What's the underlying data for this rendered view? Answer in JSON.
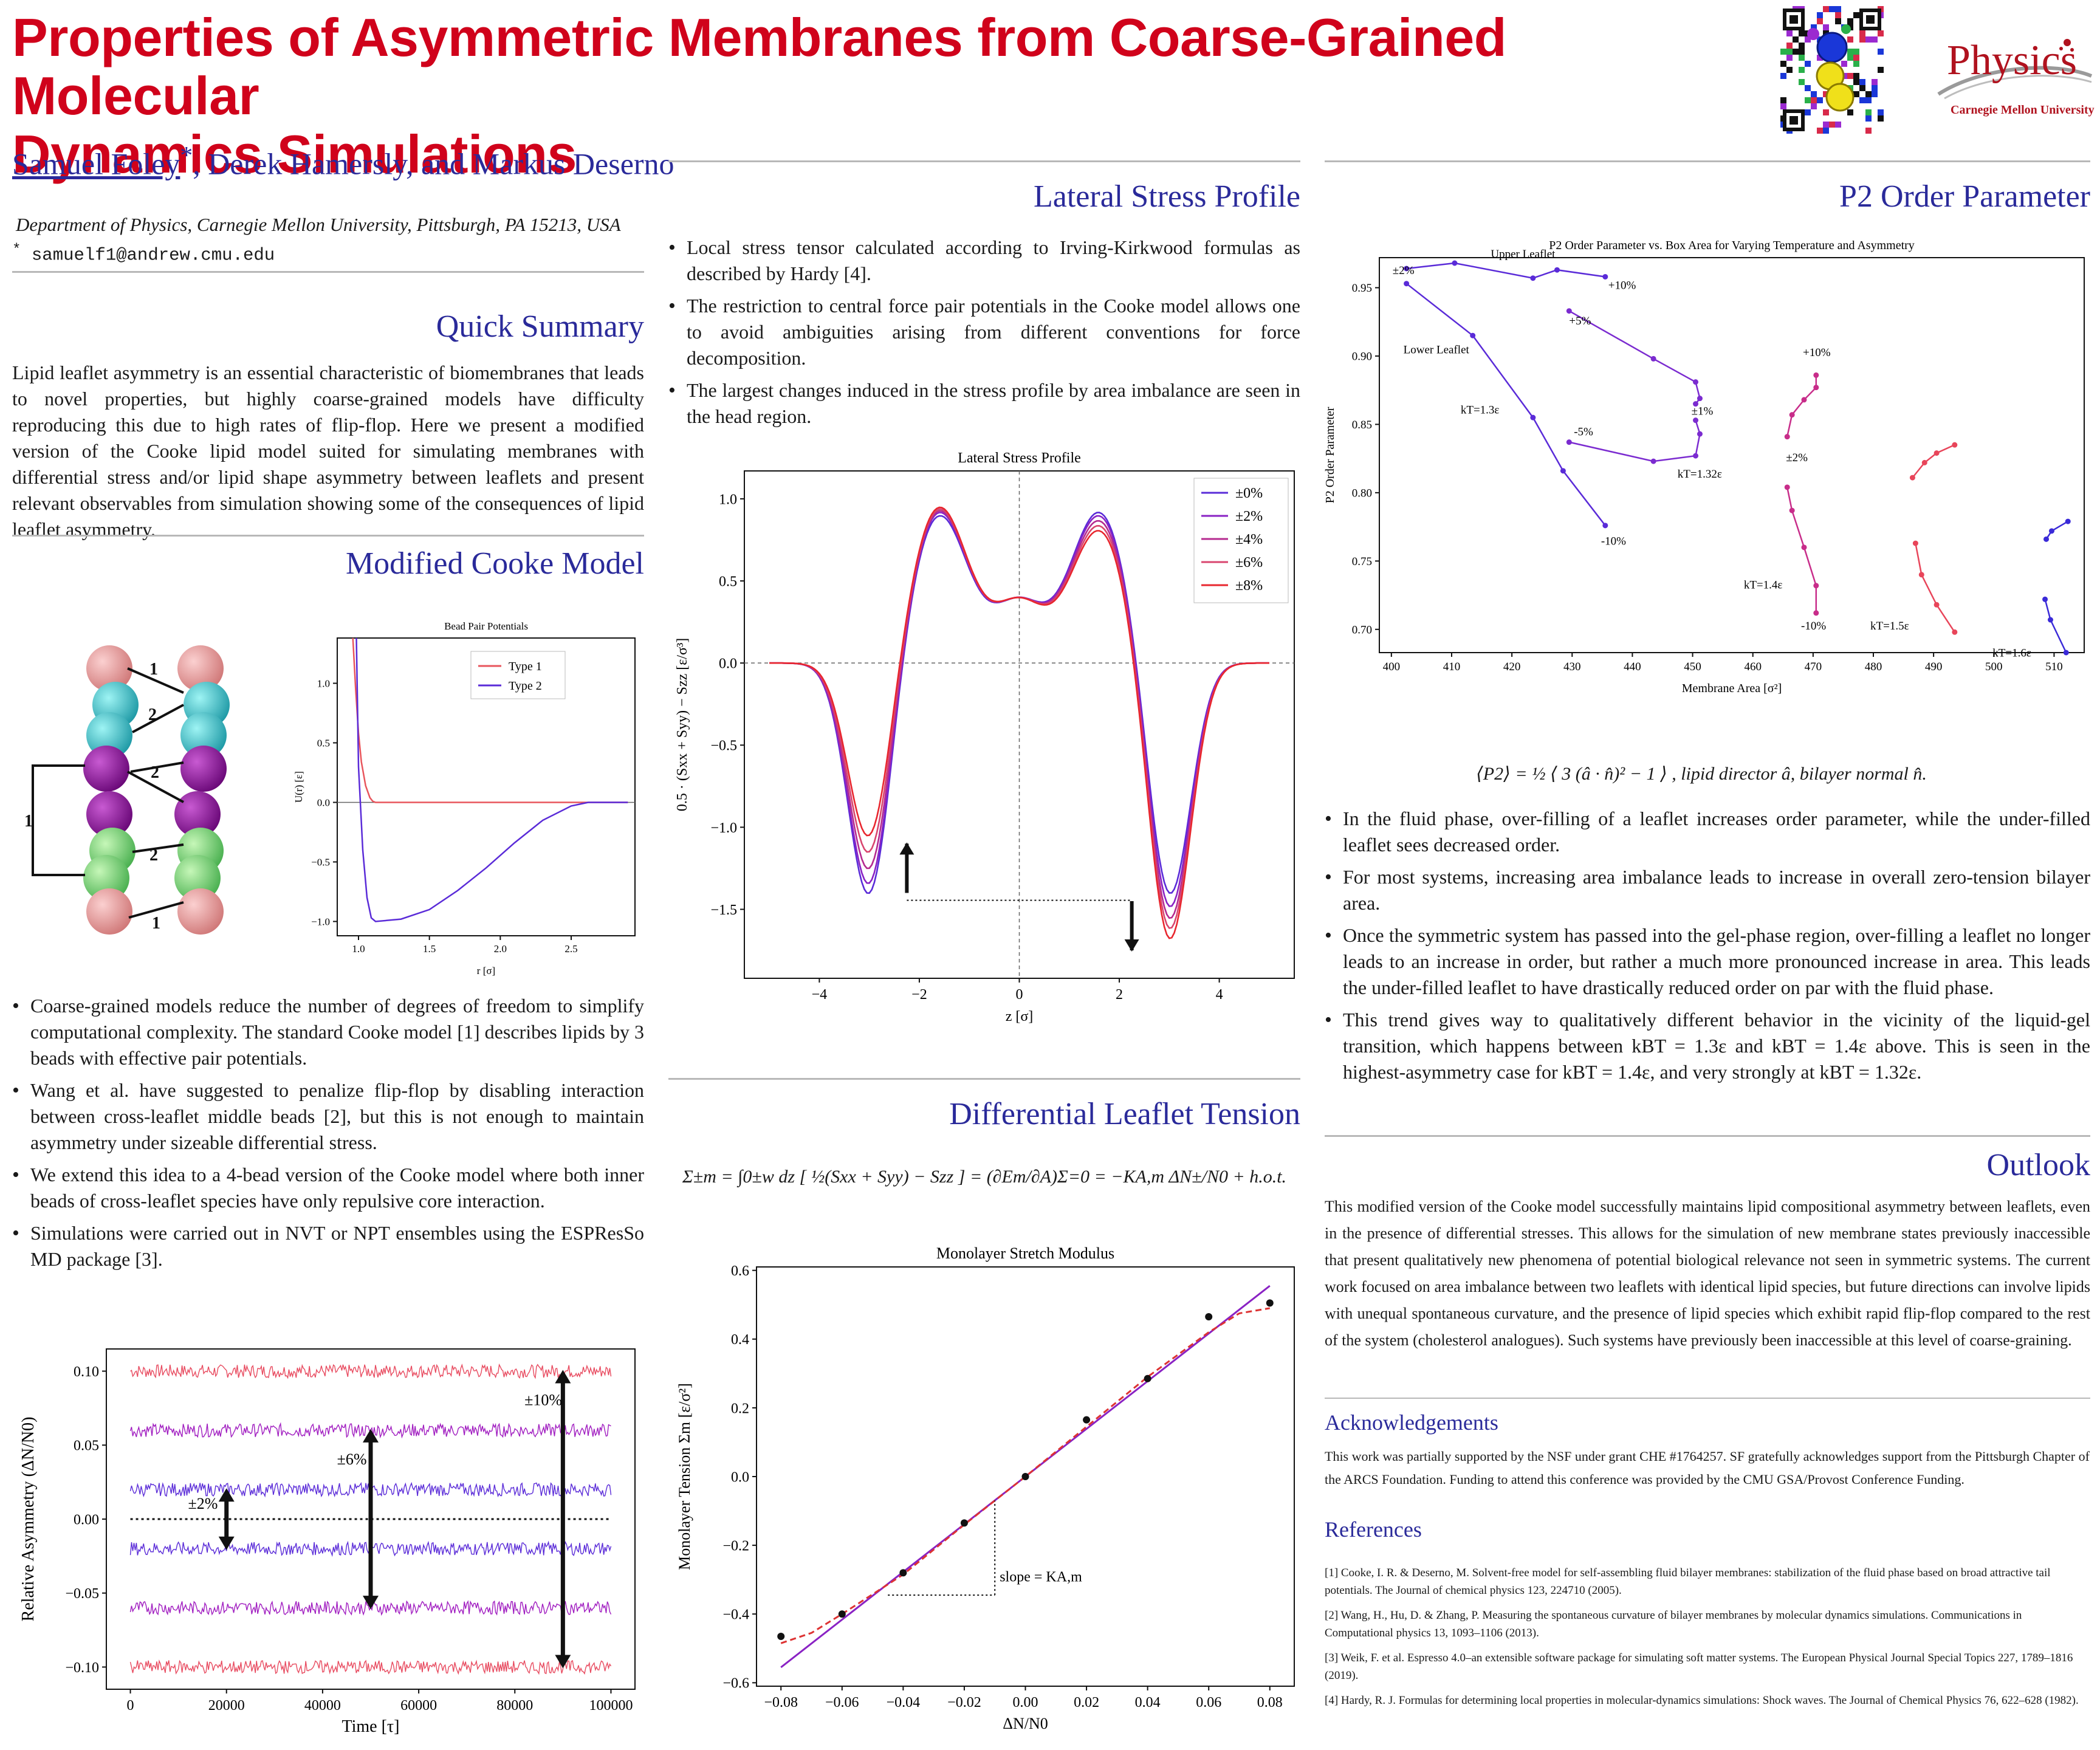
{
  "header": {
    "title_line1": "Properties of Asymmetric Membranes from Coarse-Grained Molecular",
    "title_line2": "Dynamics Simulations",
    "author_first": "Samuel Foley",
    "author_star": "*",
    "authors_rest": ", Derek Hamersly, and Markus Deserno",
    "affiliation": "Department of Physics, Carnegie Mellon University, Pittsburgh, PA 15213, USA",
    "email_star": "*",
    "email": "samuelf1@andrew.cmu.edu",
    "logo_word": "Physics",
    "logo_sub": "Carnegie Mellon University"
  },
  "quick_summary": {
    "title": "Quick Summary",
    "text": "Lipid leaflet asymmetry is an essential characteristic of biomembranes that leads to novel properties, but highly coarse-grained models have difficulty reproducing this due to high rates of flip-flop. Here we present a modified version of the Cooke lipid model suited for simulating membranes with differential stress and/or lipid shape asymmetry between leaflets and present relevant observables from simulation showing some of the consequences of lipid leaflet asymmetry."
  },
  "cooke": {
    "title": "Modified Cooke Model",
    "bead_labels": [
      "1",
      "2",
      "2",
      "1",
      "2",
      "1"
    ],
    "bullets": [
      "Coarse-grained models reduce the number of degrees of freedom to simplify computational complexity. The standard Cooke model [1] describes lipids by 3 beads with effective pair potentials.",
      "Wang et al. have suggested to penalize flip-flop by disabling interaction between cross-leaflet middle beads [2], but this is not enough to maintain asymmetry under sizeable differential stress.",
      "We extend this idea to a 4-bead version of the Cooke model where both inner beads of cross-leaflet species have only repulsive core interaction.",
      "Simulations were carried out in NVT or NPT ensembles using the ESPResSo MD package [3]."
    ]
  },
  "lateral": {
    "title": "Lateral Stress Profile",
    "bullets": [
      "Local stress tensor calculated according to Irving-Kirkwood formulas as described by Hardy [4].",
      "The restriction to central force pair potentials in the Cooke model allows one to avoid ambiguities arising from different conventions for force decomposition.",
      "The largest changes induced in the stress profile by area imbalance are seen in the head region."
    ]
  },
  "tension": {
    "title": "Differential Leaflet Tension",
    "equation": "Σ±m = ∫0±w dz [ ½(Sxx + Syy) − Szz ] = (∂Em/∂A)Σ=0 = −KA,m ΔN±/N0 + h.o.t."
  },
  "p2": {
    "title": "P2 Order Parameter",
    "equation": "⟨P2⟩ = ½ ⟨ 3 (â · n̂)² − 1 ⟩ ,     lipid director â, bilayer normal n̂.",
    "bullets": [
      "In the fluid phase, over-filling of a leaflet increases order parameter, while the under-filled leaflet sees decreased order.",
      "For most systems, increasing area imbalance leads to increase in overall zero-tension bilayer area.",
      "Once the symmetric system has passed into the gel-phase region, over-filling a leaflet no longer leads to an increase in order, but rather a much more pronounced increase in area. This leads the under-filled leaflet to have drastically reduced order on par with the fluid phase.",
      "This trend gives way to qualitatively different behavior in the vicinity of the liquid-gel transition, which happens between kBT = 1.3ε and kBT = 1.4ε above. This is seen in the highest-asymmetry case for kBT = 1.4ε, and very strongly at kBT = 1.32ε."
    ]
  },
  "outlook": {
    "title": "Outlook",
    "text": "This modified version of the Cooke model successfully maintains lipid compositional asymmetry between leaflets, even in the presence of differential stresses. This allows for the simulation of new membrane states previously inaccessible that present qualitatively new phenomena of potential biological relevance not seen in symmetric systems. The current work focused on area imbalance between two leaflets with identical lipid species, but future directions can involve lipids with unequal spontaneous curvature, and the presence of lipid species which exhibit rapid flip-flop compared to the rest of the system (cholesterol analogues). Such systems have previously been inaccessible at this level of coarse-graining."
  },
  "ack": {
    "title": "Acknowledgements",
    "text": "This work was partially supported by the NSF under grant CHE #1764257. SF gratefully acknowledges support from the Pittsburgh Chapter of the ARCS Foundation. Funding to attend this conference was provided by the CMU GSA/Provost Conference Funding."
  },
  "refs": {
    "title": "References",
    "items": [
      "[1] Cooke, I. R. & Deserno, M. Solvent-free model for self-assembling fluid bilayer membranes: stabilization of the fluid phase based on broad attractive tail potentials. The Journal of chemical physics 123, 224710 (2005).",
      "[2] Wang, H., Hu, D. & Zhang, P. Measuring the spontaneous curvature of bilayer membranes by molecular dynamics simulations. Communications in Computational physics 13, 1093–1106 (2013).",
      "[3] Weik, F. et al. Espresso 4.0–an extensible software package for simulating soft matter systems. The European Physical Journal Special Topics 227, 1789–1816 (2019).",
      "[4] Hardy, R. J. Formulas for determining local properties in molecular-dynamics simulations: Shock waves. The Journal of Chemical Physics 76, 622–628 (1982)."
    ]
  },
  "chart_data": [
    {
      "id": "bead",
      "type": "line",
      "title": "Bead Pair Potentials",
      "xlabel": "r [σ]",
      "ylabel": "U(r) [ε]",
      "xlim": [
        0.85,
        2.95
      ],
      "ylim": [
        -1.12,
        1.38
      ],
      "xticks": [
        1.0,
        1.5,
        2.0,
        2.5
      ],
      "yticks": [
        -1.0,
        -0.5,
        0.0,
        0.5,
        1.0
      ],
      "xtick_labels": [
        "1.0",
        "1.5",
        "2.0",
        "2.5"
      ],
      "ytick_labels": [
        "−1.0",
        "−0.5",
        "0.0",
        "0.5",
        "1.0"
      ],
      "series": [
        {
          "name": "Type 1",
          "color": "#e8555c",
          "x": [
            0.96,
            0.98,
            1.0,
            1.02,
            1.05,
            1.08,
            1.1,
            1.12,
            1.2,
            2.9
          ],
          "y": [
            1.38,
            0.95,
            0.58,
            0.34,
            0.14,
            0.04,
            0.01,
            0.0,
            0.0,
            0.0
          ]
        },
        {
          "name": "Type 2",
          "color": "#5a2bd8",
          "x": [
            0.985,
            1.0,
            1.03,
            1.06,
            1.09,
            1.12,
            1.3,
            1.5,
            1.7,
            1.9,
            2.1,
            2.3,
            2.5,
            2.62,
            2.9
          ],
          "y": [
            1.38,
            0.3,
            -0.4,
            -0.8,
            -0.97,
            -1.0,
            -0.98,
            -0.9,
            -0.74,
            -0.55,
            -0.34,
            -0.15,
            -0.03,
            0.0,
            0.0
          ]
        }
      ]
    },
    {
      "id": "asym",
      "type": "line",
      "xlabel": "Time [τ]",
      "ylabel": "Relative Asymmetry (ΔN/N0)",
      "xlim": [
        -5000,
        105000
      ],
      "ylim": [
        -0.115,
        0.115
      ],
      "xticks": [
        0,
        20000,
        40000,
        60000,
        80000,
        100000
      ],
      "yticks": [
        -0.1,
        -0.05,
        0.0,
        0.05,
        0.1
      ],
      "xtick_labels": [
        "0",
        "20000",
        "40000",
        "60000",
        "80000",
        "100000"
      ],
      "ytick_labels": [
        "−0.10",
        "−0.05",
        "0.00",
        "0.05",
        "0.10"
      ],
      "series": [
        {
          "name": "±10%",
          "value": 0.1,
          "color": "#e84a5f"
        },
        {
          "name": "±6%",
          "value": 0.06,
          "color": "#a01cc0"
        },
        {
          "name": "±2%",
          "value": 0.02,
          "color": "#5a2bd8"
        },
        {
          "name": "±2%",
          "value": -0.02,
          "color": "#5a2bd8"
        },
        {
          "name": "±6%",
          "value": -0.06,
          "color": "#a01cc0"
        },
        {
          "name": "±10%",
          "value": -0.1,
          "color": "#e84a5f"
        }
      ],
      "annotations": [
        {
          "label": "±2%",
          "x": 20000,
          "span": [
            -0.02,
            0.02
          ],
          "lx": 12000,
          "ly": 0.007
        },
        {
          "label": "±6%",
          "x": 50000,
          "span": [
            -0.06,
            0.06
          ],
          "lx": 43000,
          "ly": 0.037
        },
        {
          "label": "±10%",
          "x": 90000,
          "span": [
            -0.1,
            0.1
          ],
          "lx": 82000,
          "ly": 0.077
        }
      ]
    },
    {
      "id": "stress",
      "type": "line",
      "title": "Lateral Stress Profile",
      "xlabel": "z [σ]",
      "ylabel": "0.5 · (Sxx + Syy) − Szz [ε/σ³]",
      "xlim": [
        -5.5,
        5.5
      ],
      "ylim": [
        -1.92,
        1.17
      ],
      "xticks": [
        -4,
        -2,
        0,
        2,
        4
      ],
      "yticks": [
        -1.5,
        -1.0,
        -0.5,
        0.0,
        0.5,
        1.0
      ],
      "xtick_labels": [
        "−4",
        "−2",
        "0",
        "2",
        "4"
      ],
      "ytick_labels": [
        "−1.5",
        "−1.0",
        "−0.5",
        "0.0",
        "0.5",
        "1.0"
      ],
      "legend": "top-right",
      "series": [
        {
          "name": "±0%",
          "color": "#5a2bd8",
          "minL": -1.45,
          "peakL": 0.98,
          "peakR": 1.0,
          "minR": -1.45
        },
        {
          "name": "±2%",
          "color": "#8a22c4",
          "minL": -1.39,
          "peakL": 1.0,
          "peakR": 0.98,
          "minR": -1.53
        },
        {
          "name": "±4%",
          "color": "#b52a8f",
          "minL": -1.3,
          "peakL": 1.01,
          "peakR": 0.95,
          "minR": -1.6
        },
        {
          "name": "±6%",
          "color": "#d8456e",
          "minL": -1.2,
          "peakL": 1.02,
          "peakR": 0.92,
          "minR": -1.66
        },
        {
          "name": "±8%",
          "color": "#e8262e",
          "minL": -1.1,
          "peakL": 1.03,
          "peakR": 0.89,
          "minR": -1.72
        }
      ]
    },
    {
      "id": "stretch",
      "type": "scatter",
      "title": "Monolayer Stretch Modulus",
      "xlabel": "ΔN/N0",
      "ylabel": "Monolayer Tension Σm [ε/σ²]",
      "xlim": [
        -0.088,
        0.088
      ],
      "ylim": [
        -0.61,
        0.61
      ],
      "xticks": [
        -0.08,
        -0.06,
        -0.04,
        -0.02,
        0.0,
        0.02,
        0.04,
        0.06,
        0.08
      ],
      "yticks": [
        -0.6,
        -0.4,
        -0.2,
        0.0,
        0.2,
        0.4,
        0.6
      ],
      "xtick_labels": [
        "−0.08",
        "−0.06",
        "−0.04",
        "−0.02",
        "0.00",
        "0.02",
        "0.04",
        "0.06",
        "0.08"
      ],
      "ytick_labels": [
        "−0.6",
        "−0.4",
        "−0.2",
        "0.0",
        "0.2",
        "0.4",
        "0.6"
      ],
      "points": {
        "x": [
          -0.08,
          -0.06,
          -0.04,
          -0.02,
          0.0,
          0.02,
          0.04,
          0.06,
          0.08
        ],
        "y": [
          -0.465,
          -0.4,
          -0.28,
          -0.135,
          0.0,
          0.165,
          0.285,
          0.465,
          0.505
        ]
      },
      "fit_line": {
        "x": [
          -0.08,
          0.08
        ],
        "y": [
          -0.555,
          0.555
        ],
        "color": "#8a22c4"
      },
      "fit_curve": {
        "x": [
          -0.08,
          -0.07,
          -0.06,
          -0.04,
          -0.02,
          0.0,
          0.02,
          0.04,
          0.06,
          0.07,
          0.08
        ],
        "y": [
          -0.485,
          -0.455,
          -0.4,
          -0.285,
          -0.14,
          0.0,
          0.145,
          0.29,
          0.42,
          0.475,
          0.49
        ],
        "color": "#d33"
      },
      "slope_label": "slope = KA,m",
      "slope_box": {
        "x0": -0.045,
        "x1": -0.01,
        "y0": -0.345,
        "y1": -0.07
      }
    },
    {
      "id": "p2",
      "type": "line",
      "title": "P2 Order Parameter vs. Box Area for Varying Temperature and Asymmetry",
      "xlabel": "Membrane Area [σ²]",
      "ylabel": "P2 Order Parameter",
      "xlim": [
        398,
        515
      ],
      "ylim": [
        0.683,
        0.972
      ],
      "xticks": [
        400,
        410,
        420,
        430,
        440,
        450,
        460,
        470,
        480,
        490,
        500,
        510
      ],
      "yticks": [
        0.7,
        0.75,
        0.8,
        0.85,
        0.9,
        0.95
      ],
      "xtick_labels": [
        "400",
        "410",
        "420",
        "430",
        "440",
        "450",
        "460",
        "470",
        "480",
        "490",
        "500",
        "510"
      ],
      "ytick_labels": [
        "0.70",
        "0.75",
        "0.80",
        "0.85",
        "0.90",
        "0.95"
      ],
      "series": [
        {
          "name": "kT=1.3ε upper",
          "color": "#5a2bd8",
          "x": [
            402.5,
            410.5,
            423.5,
            427.5,
            435.5
          ],
          "y": [
            0.964,
            0.968,
            0.957,
            0.963,
            0.958
          ]
        },
        {
          "name": "kT=1.3ε lower",
          "color": "#5a2bd8",
          "x": [
            402.5,
            413.5,
            423.5,
            428.5,
            435.5
          ],
          "y": [
            0.953,
            0.915,
            0.855,
            0.816,
            0.776
          ]
        },
        {
          "name": "kT=1.32ε upper",
          "color": "#7b2bd0",
          "x": [
            429.5,
            443.5,
            450.5,
            451.2,
            450.5
          ],
          "y": [
            0.933,
            0.898,
            0.881,
            0.869,
            0.865
          ]
        },
        {
          "name": "kT=1.32ε lower",
          "color": "#7b2bd0",
          "x": [
            429.5,
            443.5,
            450.5,
            451.2,
            450.5
          ],
          "y": [
            0.837,
            0.823,
            0.827,
            0.843,
            0.853
          ]
        },
        {
          "name": "kT=1.4ε upper",
          "color": "#c82d8a",
          "x": [
            465.7,
            466.5,
            468.5,
            470.5,
            470.5
          ],
          "y": [
            0.841,
            0.857,
            0.868,
            0.877,
            0.886
          ]
        },
        {
          "name": "kT=1.4ε lower",
          "color": "#c82d8a",
          "x": [
            465.7,
            466.5,
            468.5,
            470.5,
            470.5
          ],
          "y": [
            0.804,
            0.787,
            0.76,
            0.732,
            0.712
          ]
        },
        {
          "name": "kT=1.5ε upper",
          "color": "#e8455a",
          "x": [
            486.5,
            488.5,
            490.5,
            493.5
          ],
          "y": [
            0.811,
            0.822,
            0.829,
            0.835
          ]
        },
        {
          "name": "kT=1.5ε lower",
          "color": "#e8455a",
          "x": [
            487.0,
            488.0,
            490.5,
            493.5
          ],
          "y": [
            0.763,
            0.74,
            0.718,
            0.698
          ]
        },
        {
          "name": "kT=1.6ε upper",
          "color": "#3a2ad8",
          "x": [
            508.7,
            509.6,
            512.3
          ],
          "y": [
            0.766,
            0.772,
            0.779
          ]
        },
        {
          "name": "kT=1.6ε lower",
          "color": "#3a2ad8",
          "x": [
            508.5,
            509.4,
            512.0
          ],
          "y": [
            0.722,
            0.707,
            0.683
          ]
        }
      ],
      "annotations": [
        {
          "text": "±2%",
          "x": 400.2,
          "y": 0.96
        },
        {
          "text": "Upper Leaflet",
          "x": 416.5,
          "y": 0.972
        },
        {
          "text": "+10%",
          "x": 436,
          "y": 0.949
        },
        {
          "text": "+5%",
          "x": 429.5,
          "y": 0.923
        },
        {
          "text": "Lower Leaflet",
          "x": 402,
          "y": 0.902
        },
        {
          "text": "kT=1.3ε",
          "x": 411.5,
          "y": 0.858
        },
        {
          "text": "±1%",
          "x": 449.8,
          "y": 0.857
        },
        {
          "text": "-5%",
          "x": 430.3,
          "y": 0.842
        },
        {
          "text": "kT=1.32ε",
          "x": 447.5,
          "y": 0.811
        },
        {
          "text": "-10%",
          "x": 434.8,
          "y": 0.762
        },
        {
          "text": "+10%",
          "x": 468.3,
          "y": 0.9
        },
        {
          "text": "±2%",
          "x": 465.5,
          "y": 0.823
        },
        {
          "text": "kT=1.4ε",
          "x": 458.5,
          "y": 0.73
        },
        {
          "text": "-10%",
          "x": 468.0,
          "y": 0.7
        },
        {
          "text": "kT=1.5ε",
          "x": 479.5,
          "y": 0.7
        },
        {
          "text": "kT=1.6ε",
          "x": 499.8,
          "y": 0.68
        }
      ]
    }
  ]
}
